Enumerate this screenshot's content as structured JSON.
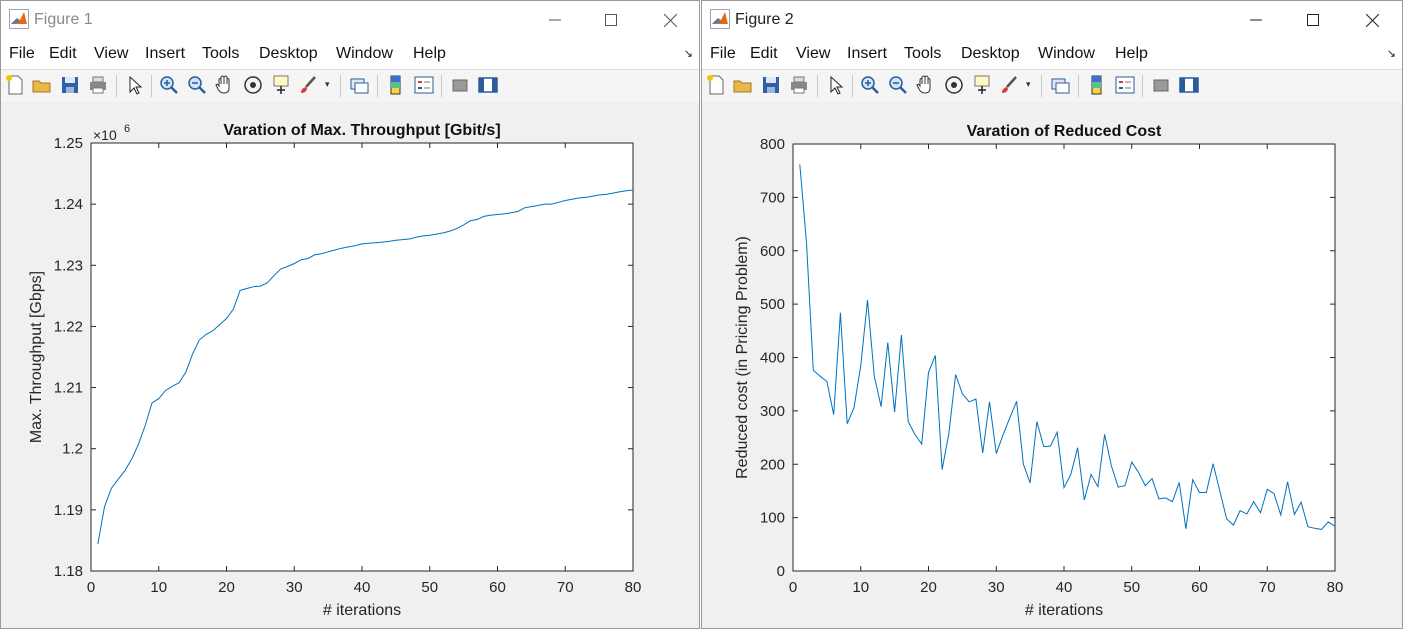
{
  "windows": [
    {
      "title": "Figure 1",
      "active": false,
      "menu": [
        "File",
        "Edit",
        "View",
        "Insert",
        "Tools",
        "Desktop",
        "Window",
        "Help"
      ],
      "chart_data": {
        "type": "line",
        "title": "Varation of Max. Throughput [Gbit/s]",
        "xlabel": "# iterations",
        "ylabel": "Max. Throughput [Gbps]",
        "exponent_label": "×10",
        "exponent_power": "6",
        "xlim": [
          0,
          80
        ],
        "ylim": [
          1.18,
          1.25
        ],
        "xticks": [
          "0",
          "10",
          "20",
          "30",
          "40",
          "50",
          "60",
          "70",
          "80"
        ],
        "yticks": [
          "1.18",
          "1.19",
          "1.2",
          "1.21",
          "1.22",
          "1.23",
          "1.24",
          "1.25"
        ],
        "grid": false,
        "color": "#0072BD",
        "series": [
          {
            "x": [
              1,
              2,
              3,
              4,
              5,
              6,
              7,
              8,
              9,
              10,
              11,
              12,
              13,
              14,
              15,
              16,
              17,
              18,
              19,
              20,
              21,
              22,
              23,
              24,
              25,
              26,
              27,
              28,
              29,
              30,
              31,
              32,
              33,
              34,
              35,
              36,
              37,
              38,
              39,
              40,
              41,
              42,
              43,
              44,
              45,
              46,
              47,
              48,
              49,
              50,
              51,
              52,
              53,
              54,
              55,
              56,
              57,
              58,
              59,
              60,
              61,
              62,
              63,
              64,
              65,
              66,
              67,
              68,
              69,
              70,
              71,
              72,
              73,
              74,
              75,
              76,
              77,
              78,
              79,
              80
            ],
            "y": [
              1.1844,
              1.1905,
              1.1935,
              1.195,
              1.1964,
              1.1983,
              1.2007,
              1.2038,
              1.2075,
              1.2082,
              1.2095,
              1.2102,
              1.2108,
              1.2125,
              1.2155,
              1.2178,
              1.2187,
              1.2193,
              1.2203,
              1.2213,
              1.2228,
              1.2259,
              1.2262,
              1.2265,
              1.2266,
              1.2271,
              1.2283,
              1.2294,
              1.2298,
              1.2303,
              1.2309,
              1.2311,
              1.2317,
              1.2319,
              1.2322,
              1.2325,
              1.2328,
              1.233,
              1.2332,
              1.2335,
              1.2336,
              1.2337,
              1.2338,
              1.2339,
              1.2341,
              1.2342,
              1.2343,
              1.2346,
              1.2348,
              1.2349,
              1.2351,
              1.2353,
              1.2356,
              1.236,
              1.2366,
              1.2373,
              1.2375,
              1.238,
              1.2382,
              1.2383,
              1.2384,
              1.2386,
              1.2388,
              1.2394,
              1.2396,
              1.2398,
              1.24,
              1.24,
              1.2403,
              1.2406,
              1.2408,
              1.241,
              1.2411,
              1.2413,
              1.2415,
              1.2416,
              1.2418,
              1.242,
              1.2422,
              1.2423
            ]
          }
        ]
      }
    },
    {
      "title": "Figure 2",
      "active": true,
      "menu": [
        "File",
        "Edit",
        "View",
        "Insert",
        "Tools",
        "Desktop",
        "Window",
        "Help"
      ],
      "chart_data": {
        "type": "line",
        "title": "Varation of Reduced Cost",
        "xlabel": "# iterations",
        "ylabel": "Reduced cost (in Pricing Problem)",
        "xlim": [
          0,
          80
        ],
        "ylim": [
          0,
          800
        ],
        "xticks": [
          "0",
          "10",
          "20",
          "30",
          "40",
          "50",
          "60",
          "70",
          "80"
        ],
        "yticks": [
          "0",
          "100",
          "200",
          "300",
          "400",
          "500",
          "600",
          "700",
          "800"
        ],
        "grid": false,
        "color": "#0072BD",
        "series": [
          {
            "x": [
              1,
              2,
              3,
              4,
              5,
              6,
              7,
              8,
              9,
              10,
              11,
              12,
              13,
              14,
              15,
              16,
              17,
              18,
              19,
              20,
              21,
              22,
              23,
              24,
              25,
              26,
              27,
              28,
              29,
              30,
              31,
              32,
              33,
              34,
              35,
              36,
              37,
              38,
              39,
              40,
              41,
              42,
              43,
              44,
              45,
              46,
              47,
              48,
              49,
              50,
              51,
              52,
              53,
              54,
              55,
              56,
              57,
              58,
              59,
              60,
              61,
              62,
              63,
              64,
              65,
              66,
              67,
              68,
              69,
              70,
              71,
              72,
              73,
              74,
              75,
              76,
              77,
              78,
              79,
              80
            ],
            "y": [
              762,
              615,
              376,
              365,
              355,
              293,
              484,
              276,
              306,
              385,
              508,
              365,
              308,
              428,
              298,
              442,
              280,
              256,
              238,
              372,
              404,
              190,
              257,
              368,
              332,
              317,
              322,
              221,
              317,
              220,
              255,
              287,
              318,
              200,
              165,
              280,
              233,
              234,
              260,
              156,
              181,
              231,
              133,
              181,
              158,
              256,
              197,
              157,
              160,
              204,
              185,
              160,
              173,
              135,
              137,
              130,
              166,
              79,
              171,
              147,
              147,
              201,
              150,
              98,
              86,
              113,
              107,
              130,
              109,
              153,
              145,
              105,
              167,
              106,
              129,
              83,
              80,
              78,
              92,
              84
            ]
          }
        ]
      }
    }
  ]
}
